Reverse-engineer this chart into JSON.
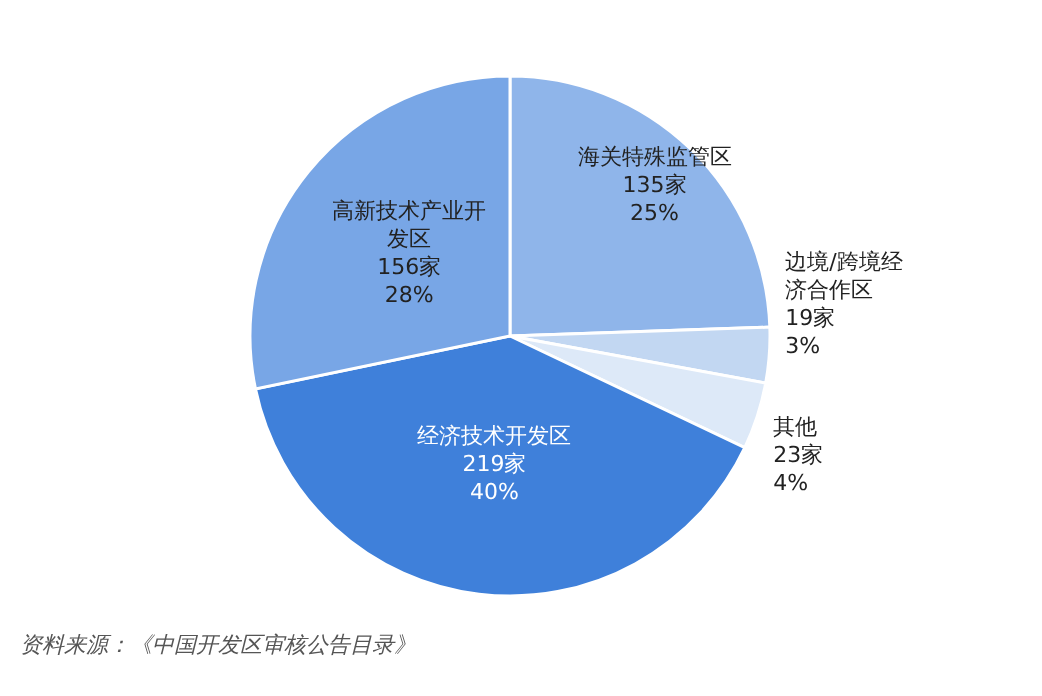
{
  "chart_data": {
    "type": "pie",
    "categories": [
      "海关特殊监管区",
      "边境/跨境经济合作区",
      "其他",
      "经济技术开发区",
      "高新技术产业开发区"
    ],
    "values": [
      135,
      19,
      23,
      219,
      156
    ],
    "value_labels": [
      "135家 25%",
      "19家 3%",
      "23家 4%",
      "219家 40%",
      "156家 28%"
    ],
    "colors": [
      "#8fb5ea",
      "#c2d7f2",
      "#dde9f8",
      "#3f80da",
      "#78a6e6"
    ],
    "annotations": [
      "资料来源：《中国开发区审核公告目录》"
    ]
  }
}
